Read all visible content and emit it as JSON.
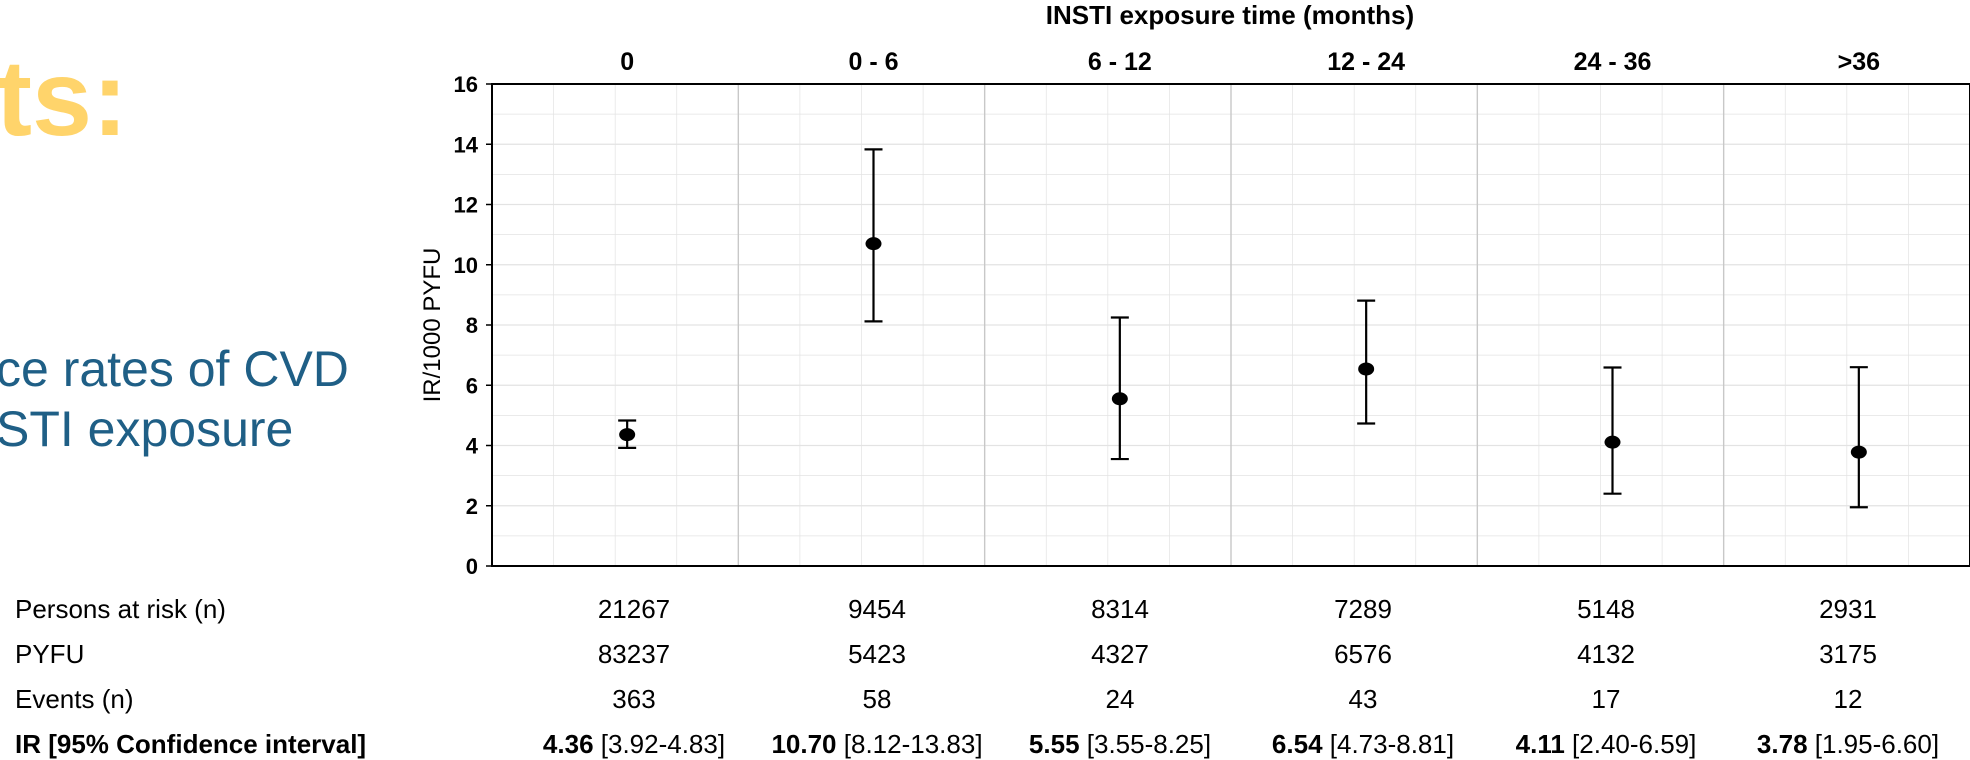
{
  "slide": {
    "title_fragment": "ts:",
    "subtitle_line1": "ce rates of CVD",
    "subtitle_line2": "STI exposure"
  },
  "colors": {
    "title": "#FFD46B",
    "subtitle": "#1F5F86",
    "grid": "#e3e3e3",
    "marker": "#000000"
  },
  "chart_data": {
    "type": "scatter",
    "title": "INSTI exposure time (months)",
    "xlabel": "",
    "ylabel": "IR/1000 PYFU",
    "ylim": [
      0,
      16
    ],
    "yticks": [
      0,
      2,
      4,
      6,
      8,
      10,
      12,
      14,
      16
    ],
    "grid": true,
    "categories": [
      "0",
      "0 - 6",
      "6 - 12",
      "12 - 24",
      "24 - 36",
      ">36"
    ],
    "values": [
      4.36,
      10.7,
      5.55,
      6.54,
      4.11,
      3.78
    ],
    "ci_lower": [
      3.92,
      8.12,
      3.55,
      4.73,
      2.4,
      1.95
    ],
    "ci_upper": [
      4.83,
      13.83,
      8.25,
      8.81,
      6.59,
      6.6
    ]
  },
  "table": {
    "rows": [
      {
        "label": "Persons at risk (n)",
        "values": [
          "21267",
          "9454",
          "8314",
          "7289",
          "5148",
          "2931"
        ]
      },
      {
        "label": "PYFU",
        "values": [
          "83237",
          "5423",
          "4327",
          "6576",
          "4132",
          "3175"
        ]
      },
      {
        "label": "Events (n)",
        "values": [
          "363",
          "58",
          "24",
          "43",
          "17",
          "12"
        ]
      }
    ],
    "ir_label": "IR [95% Confidence interval]",
    "ir_values": [
      "4.36",
      "10.70",
      "5.55",
      "6.54",
      "4.11",
      "3.78"
    ],
    "ir_cis": [
      "[3.92-4.83]",
      "[8.12-13.83]",
      "[3.55-8.25]",
      "[4.73-8.81]",
      "[2.40-6.59]",
      "[1.95-6.60]"
    ]
  }
}
